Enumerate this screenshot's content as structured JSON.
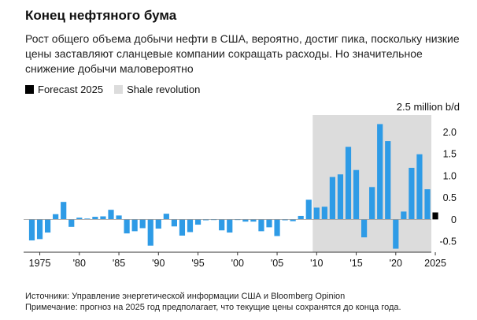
{
  "chart_data": {
    "type": "bar",
    "title": "Конец нефтяного бума",
    "subtitle": "Рост общего объема добычи нефти в США, вероятно, достиг пика, поскольку низкие цены заставляют сланцевые компании сокращать расходы. Но значительное снижение добычи маловероятно",
    "unit": "2.5 million b/d",
    "legend": [
      {
        "name": "Forecast 2025",
        "color": "#000000"
      },
      {
        "name": "Shale revolution",
        "color": "#dcdcdc"
      }
    ],
    "years": [
      1974,
      1975,
      1976,
      1977,
      1978,
      1979,
      1980,
      1981,
      1982,
      1983,
      1984,
      1985,
      1986,
      1987,
      1988,
      1989,
      1990,
      1991,
      1992,
      1993,
      1994,
      1995,
      1996,
      1997,
      1998,
      1999,
      2000,
      2001,
      2002,
      2003,
      2004,
      2005,
      2006,
      2007,
      2008,
      2009,
      2010,
      2011,
      2012,
      2013,
      2014,
      2015,
      2016,
      2017,
      2018,
      2019,
      2020,
      2021,
      2022,
      2023,
      2024,
      2025
    ],
    "values": [
      -0.48,
      -0.45,
      -0.3,
      0.12,
      0.4,
      -0.17,
      0.04,
      0.02,
      0.06,
      0.07,
      0.22,
      0.09,
      -0.32,
      -0.27,
      -0.2,
      -0.6,
      -0.21,
      0.13,
      -0.16,
      -0.37,
      -0.29,
      -0.12,
      -0.02,
      0.0,
      -0.25,
      -0.3,
      0.0,
      -0.05,
      -0.05,
      -0.27,
      -0.18,
      -0.38,
      -0.02,
      -0.04,
      0.08,
      0.45,
      0.27,
      0.29,
      0.97,
      1.03,
      1.66,
      1.13,
      -0.41,
      0.74,
      2.18,
      1.79,
      -0.67,
      0.18,
      1.18,
      1.49,
      0.69,
      0.16
    ],
    "forecast_year": 2025,
    "shale_range": [
      2010,
      2024
    ],
    "bar_color": "#2e9be6",
    "forecast_color": "#000000",
    "shale_color": "#dcdcdc",
    "ylim": [
      -0.75,
      2.35
    ],
    "y_ticks": [
      {
        "value": 2.0,
        "label": "2.0"
      },
      {
        "value": 1.5,
        "label": "1.5"
      },
      {
        "value": 1.0,
        "label": "1.0"
      },
      {
        "value": 0.5,
        "label": "0.5"
      },
      {
        "value": 0,
        "label": "0"
      },
      {
        "value": -0.5,
        "label": "-0.5"
      }
    ],
    "x_ticks": [
      {
        "year": 1975,
        "label": "1975"
      },
      {
        "year": 1980,
        "label": "'80"
      },
      {
        "year": 1985,
        "label": "'85"
      },
      {
        "year": 1990,
        "label": "'90"
      },
      {
        "year": 1995,
        "label": "'95"
      },
      {
        "year": 2000,
        "label": "'00"
      },
      {
        "year": 2005,
        "label": "'05"
      },
      {
        "year": 2010,
        "label": "'10"
      },
      {
        "year": 2015,
        "label": "'15"
      },
      {
        "year": 2020,
        "label": "'20"
      },
      {
        "year": 2025,
        "label": "2025"
      }
    ]
  },
  "source": {
    "sources_line": "Источники: Управление энергетической информации США и Bloomberg Opinion",
    "note_line": "Примечание: прогноз на 2025 год предполагает, что текущие цены сохранятся до конца года."
  }
}
